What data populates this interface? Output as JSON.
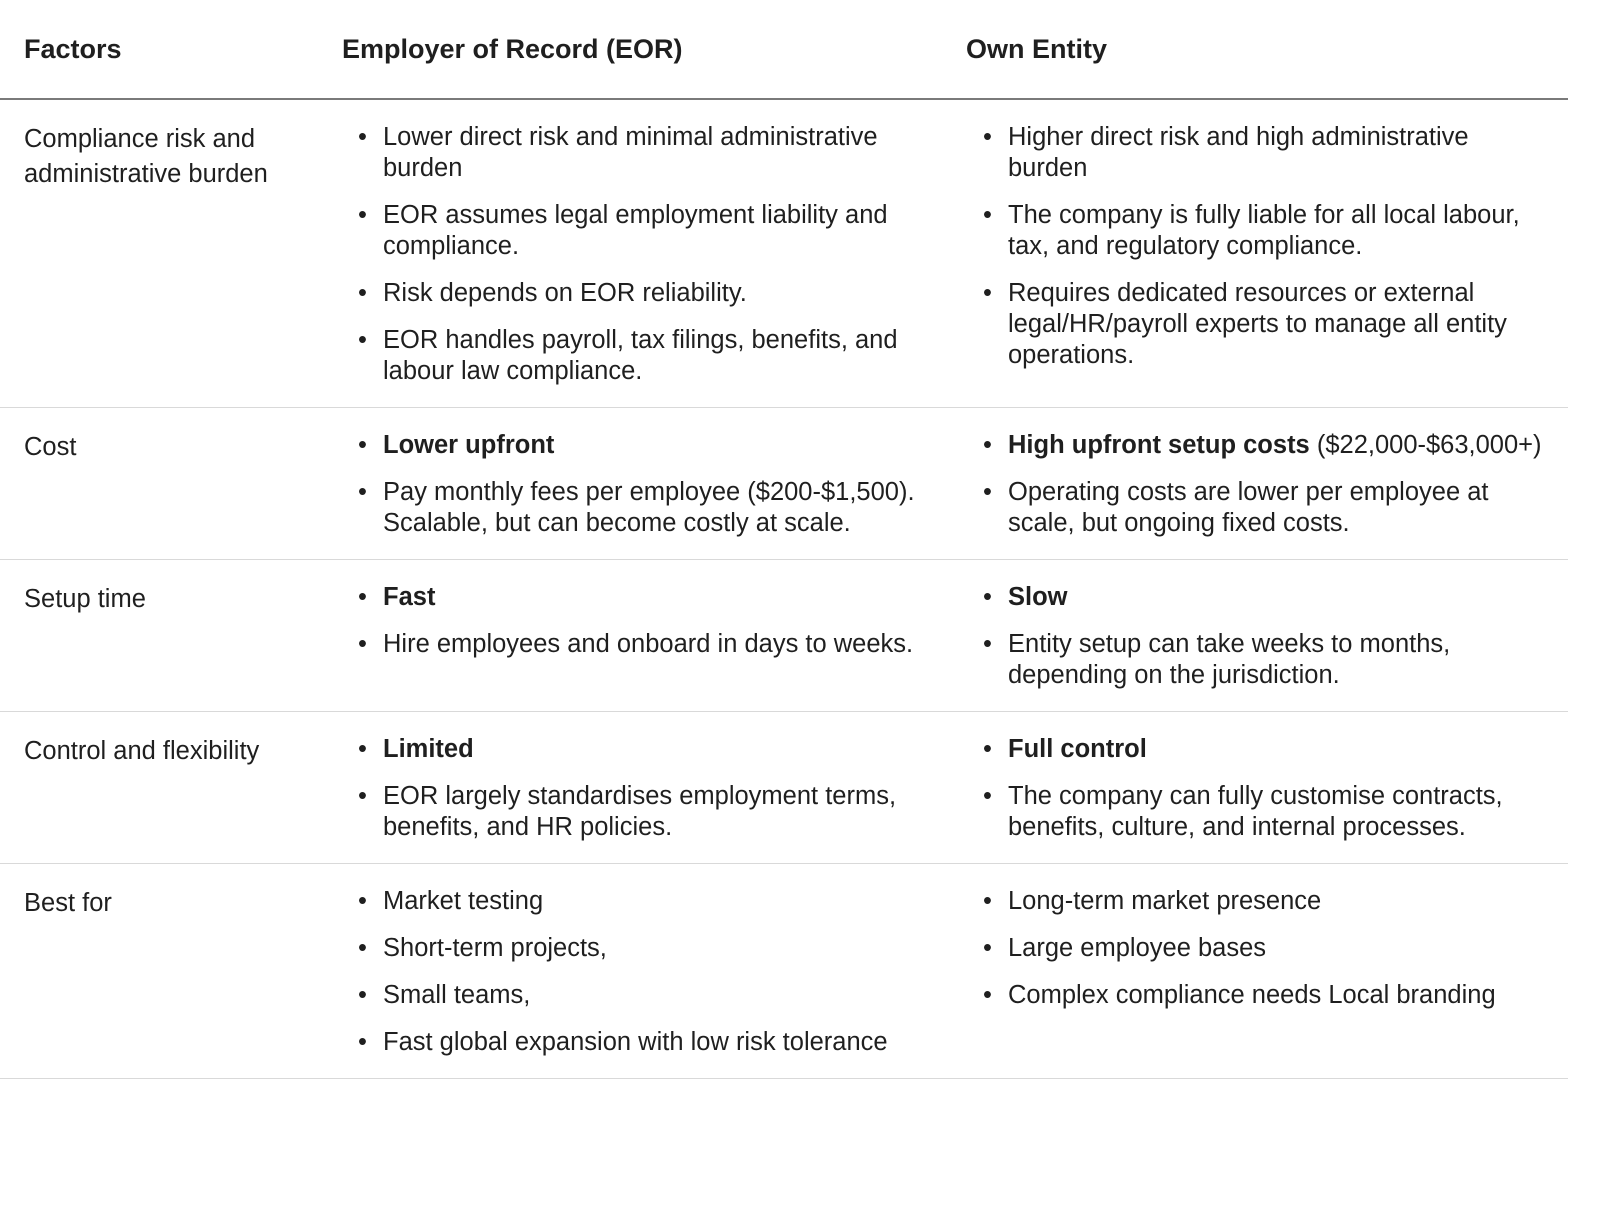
{
  "headers": [
    "Factors",
    "Employer of Record (EOR)",
    "Own Entity"
  ],
  "rows": [
    {
      "factor": "Compliance risk and administrative burden",
      "eor": [
        {
          "bold": "",
          "text": "Lower direct risk and minimal administrative burden"
        },
        {
          "bold": "",
          "text": "EOR assumes legal employment liability and compliance."
        },
        {
          "bold": "",
          "text": "Risk depends on EOR reliability."
        },
        {
          "bold": "",
          "text": "EOR handles payroll, tax filings, benefits, and labour law compliance."
        }
      ],
      "own": [
        {
          "bold": "",
          "text": "Higher direct risk and high administrative burden"
        },
        {
          "bold": "",
          "text": "The company is fully liable for all local labour, tax, and regulatory compliance."
        },
        {
          "bold": "",
          "text": "Requires dedicated resources or external legal/HR/payroll experts to manage all entity operations."
        }
      ]
    },
    {
      "factor": "Cost",
      "eor": [
        {
          "bold": "Lower upfront",
          "text": ""
        },
        {
          "bold": "",
          "text": "Pay monthly fees per employee ($200-$1,500). Scalable, but can become costly at scale."
        }
      ],
      "own": [
        {
          "bold": "High upfront setup costs",
          "text": " ($22,000-$63,000+)"
        },
        {
          "bold": "",
          "text": "Operating costs are lower per employee at scale, but ongoing fixed costs."
        }
      ]
    },
    {
      "factor": "Setup time",
      "eor": [
        {
          "bold": "Fast",
          "text": ""
        },
        {
          "bold": "",
          "text": "Hire employees and onboard in days to weeks."
        }
      ],
      "own": [
        {
          "bold": "Slow",
          "text": ""
        },
        {
          "bold": "",
          "text": "Entity setup can take weeks to months, depending on the jurisdiction."
        }
      ]
    },
    {
      "factor": "Control and flexibility",
      "eor": [
        {
          "bold": "Limited",
          "text": ""
        },
        {
          "bold": "",
          "text": "EOR largely standardises employment terms, benefits, and HR policies."
        }
      ],
      "own": [
        {
          "bold": "Full control",
          "text": ""
        },
        {
          "bold": "",
          "text": "The company can fully customise contracts, benefits, culture, and internal processes."
        }
      ]
    },
    {
      "factor": "Best for",
      "eor": [
        {
          "bold": "",
          "text": "Market testing"
        },
        {
          "bold": "",
          "text": "Short-term projects,"
        },
        {
          "bold": "",
          "text": "Small teams,"
        },
        {
          "bold": "",
          "text": "Fast global expansion with low risk tolerance"
        }
      ],
      "own": [
        {
          "bold": "",
          "text": "Long-term market presence"
        },
        {
          "bold": "",
          "text": "Large employee bases"
        },
        {
          "bold": "",
          "text": "Complex compliance needs Local branding"
        }
      ]
    }
  ]
}
